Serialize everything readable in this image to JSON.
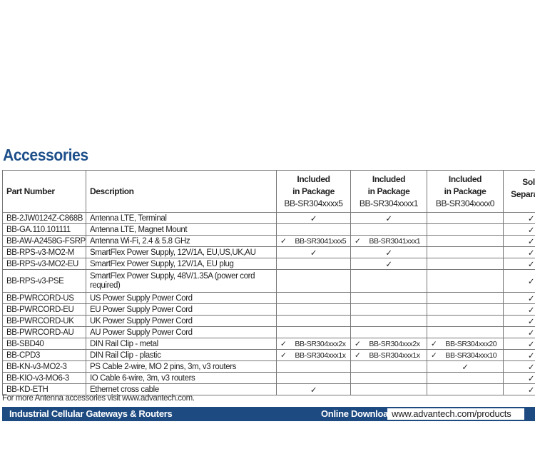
{
  "title": "Accessories",
  "table": {
    "headers": {
      "part": "Part Number",
      "desc": "Description",
      "inc5": {
        "line1": "Included",
        "line2": "in Package",
        "sub": "BB-SR304xxxx5"
      },
      "inc1": {
        "line1": "Included",
        "line2": "in Package",
        "sub": "BB-SR304xxxx1"
      },
      "inc0": {
        "line1": "Included",
        "line2": "in Package",
        "sub": "BB-SR304xxxx0"
      },
      "sold": {
        "line1": "Sold",
        "line2": "Separately"
      }
    },
    "rows": [
      {
        "part": "BB-2JW0124Z-C868B",
        "desc": "Antenna LTE, Terminal",
        "inc5": "✓",
        "inc1": "✓",
        "inc0": "",
        "sold": "✓"
      },
      {
        "part": "BB-GA.110.101111",
        "desc": "Antenna LTE, Magnet Mount",
        "inc5": "",
        "inc1": "",
        "inc0": "",
        "sold": "✓"
      },
      {
        "part": "BB-AW-A2458G-FSRPK",
        "desc": "Antenna Wi-Fi, 2.4 & 5.8 GHz",
        "inc5": "✓ BB-SR3041xxx5",
        "inc1": "✓ BB-SR3041xxx1",
        "inc0": "",
        "sold": "✓"
      },
      {
        "part": "BB-RPS-v3-MO2-M",
        "desc": "SmartFlex Power Supply, 12V/1A, EU,US,UK,AU",
        "inc5": "✓",
        "inc1": "✓",
        "inc0": "",
        "sold": "✓"
      },
      {
        "part": "BB-RPS-v3-MO2-EU",
        "desc": "SmartFlex Power Supply, 12V/1A, EU plug",
        "inc5": "",
        "inc1": "✓",
        "inc0": "",
        "sold": "✓"
      },
      {
        "part": "BB-RPS-v3-PSE",
        "desc": "SmartFlex Power Supply, 48V/1.35A (power cord required)",
        "inc5": "",
        "inc1": "",
        "inc0": "",
        "sold": "✓"
      },
      {
        "part": "BB-PWRCORD-US",
        "desc": "US Power Supply Power Cord",
        "inc5": "",
        "inc1": "",
        "inc0": "",
        "sold": "✓"
      },
      {
        "part": "BB-PWRCORD-EU",
        "desc": "EU Power Supply Power Cord",
        "inc5": "",
        "inc1": "",
        "inc0": "",
        "sold": "✓"
      },
      {
        "part": "BB-PWRCORD-UK",
        "desc": "UK Power Supply Power Cord",
        "inc5": "",
        "inc1": "",
        "inc0": "",
        "sold": "✓"
      },
      {
        "part": "BB-PWRCORD-AU",
        "desc": "AU Power Supply Power Cord",
        "inc5": "",
        "inc1": "",
        "inc0": "",
        "sold": "✓"
      },
      {
        "part": "BB-SBD40",
        "desc": "DIN Rail Clip - metal",
        "inc5": "✓ BB-SR304xxx2x",
        "inc1": "✓ BB-SR304xxx2x",
        "inc0": "✓ BB-SR304xxx20",
        "sold": "✓"
      },
      {
        "part": "BB-CPD3",
        "desc": "DIN Rail Clip - plastic",
        "inc5": "✓ BB-SR304xxx1x",
        "inc1": "✓ BB-SR304xxx1x",
        "inc0": "✓ BB-SR304xxx10",
        "sold": "✓"
      },
      {
        "part": "BB-KN-v3-MO2-3",
        "desc": "PS Cable 2-wire, MO 2 pins, 3m, v3 routers",
        "inc5": "",
        "inc1": "",
        "inc0": "✓",
        "sold": "✓"
      },
      {
        "part": "BB-KIO-v3-MO6-3",
        "desc": "IO Cable 6-wire, 3m, v3 routers",
        "inc5": "",
        "inc1": "",
        "inc0": "",
        "sold": "✓"
      },
      {
        "part": "BB-KD-ETH",
        "desc": "Ethernet cross cable",
        "inc5": "✓",
        "inc1": "",
        "inc0": "",
        "sold": "✓"
      }
    ]
  },
  "note": "For more Antenna accessories visit www.advantech.com.",
  "footer": {
    "category": "Industrial Cellular Gateways & Routers",
    "download_label": "Online Download",
    "download_url": "www.advantech.com/products"
  },
  "colors": {
    "brand": "#1d4f8a",
    "bar": "#1d4a80"
  }
}
